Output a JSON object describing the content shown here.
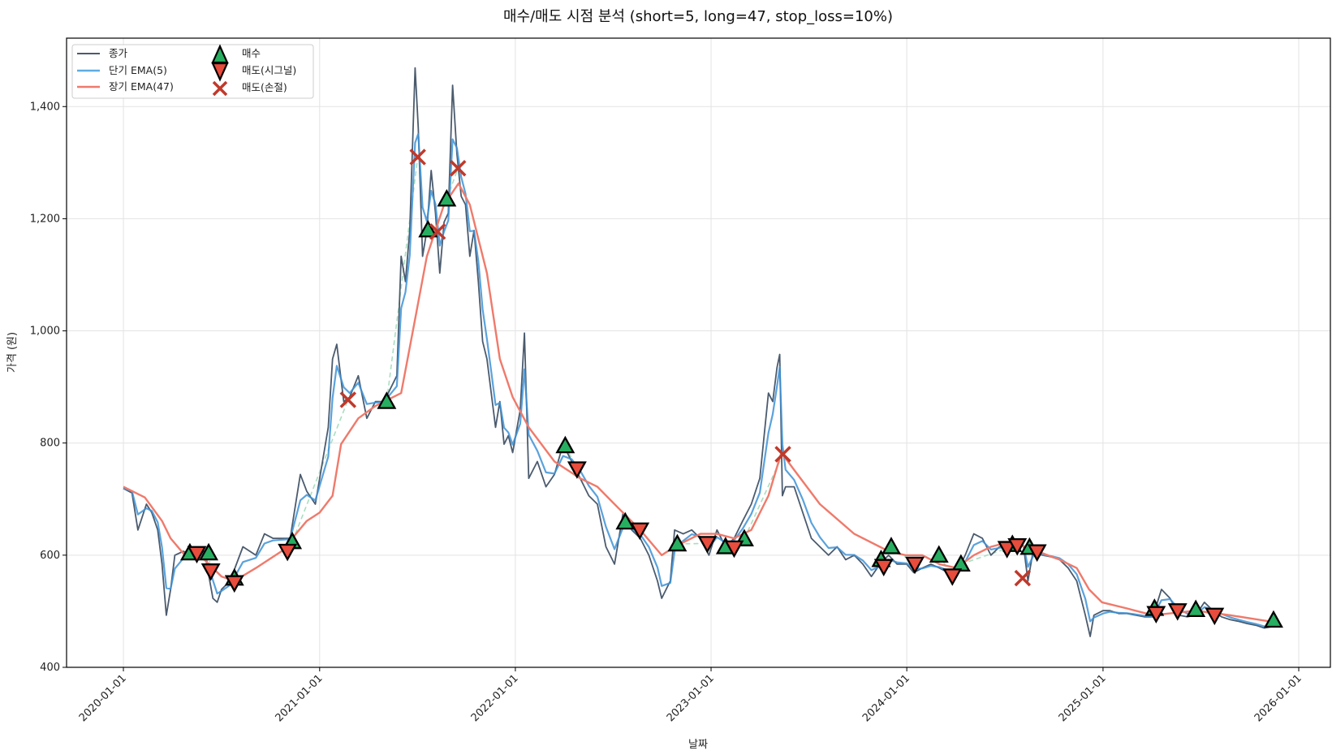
{
  "chart_data": {
    "type": "line",
    "title": "매수/매도 시점 분석 (short=5, long=47, stop_loss=10%)",
    "xlabel": "날짜",
    "ylabel": "가격 (원)",
    "xlim": [
      "2019-09-17",
      "2026-03-01"
    ],
    "ylim": [
      400,
      1522
    ],
    "x_ticks": [
      "2020-01-01",
      "2021-01-01",
      "2022-01-01",
      "2023-01-01",
      "2024-01-01",
      "2025-01-01",
      "2026-01-01"
    ],
    "y_ticks": [
      400,
      600,
      800,
      1000,
      1200,
      1400
    ],
    "y_tick_labels": [
      "400",
      "600",
      "800",
      "1,000",
      "1,200",
      "1,400"
    ],
    "grid": true,
    "legend_position": "top-left",
    "legend": {
      "close": "종가",
      "short_ema": "단기 EMA(5)",
      "long_ema": "장기 EMA(47)",
      "buy": "매수",
      "sell_signal": "매도(시그널)",
      "sell_stop": "매도(손절)"
    },
    "colors": {
      "close": "#4b5b6e",
      "short_ema": "#3d92d6",
      "long_ema": "#ef7a6b",
      "buy": "#27ae60",
      "sell_signal": "#e74c3c",
      "sell_stop": "#c0392b",
      "trade_line": "#a9dfbf"
    },
    "close": [
      [
        "2020-01-01",
        719
      ],
      [
        "2020-01-17",
        711
      ],
      [
        "2020-01-28",
        645
      ],
      [
        "2020-02-13",
        691
      ],
      [
        "2020-02-23",
        676
      ],
      [
        "2020-03-05",
        645
      ],
      [
        "2020-03-13",
        584
      ],
      [
        "2020-03-21",
        493
      ],
      [
        "2020-03-29",
        539
      ],
      [
        "2020-04-06",
        600
      ],
      [
        "2020-04-22",
        607
      ],
      [
        "2020-05-07",
        600
      ],
      [
        "2020-05-31",
        607
      ],
      [
        "2020-06-16",
        523
      ],
      [
        "2020-06-24",
        516
      ],
      [
        "2020-07-02",
        539
      ],
      [
        "2020-07-18",
        554
      ],
      [
        "2020-08-11",
        615
      ],
      [
        "2020-09-04",
        600
      ],
      [
        "2020-09-20",
        638
      ],
      [
        "2020-10-06",
        630
      ],
      [
        "2020-11-07",
        630
      ],
      [
        "2020-11-26",
        744
      ],
      [
        "2020-12-08",
        714
      ],
      [
        "2020-12-24",
        691
      ],
      [
        "2021-01-17",
        828
      ],
      [
        "2021-01-25",
        950
      ],
      [
        "2021-02-02",
        976
      ],
      [
        "2021-02-15",
        874
      ],
      [
        "2021-02-26",
        882
      ],
      [
        "2021-03-14",
        920
      ],
      [
        "2021-03-30",
        844
      ],
      [
        "2021-04-15",
        874
      ],
      [
        "2021-05-01",
        874
      ],
      [
        "2021-05-25",
        920
      ],
      [
        "2021-06-02",
        1133
      ],
      [
        "2021-06-10",
        1088
      ],
      [
        "2021-06-18",
        1179
      ],
      [
        "2021-06-28",
        1469
      ],
      [
        "2021-07-04",
        1362
      ],
      [
        "2021-07-12",
        1133
      ],
      [
        "2021-07-20",
        1179
      ],
      [
        "2021-07-28",
        1286
      ],
      [
        "2021-08-05",
        1210
      ],
      [
        "2021-08-13",
        1103
      ],
      [
        "2021-08-21",
        1194
      ],
      [
        "2021-08-29",
        1210
      ],
      [
        "2021-09-06",
        1438
      ],
      [
        "2021-09-14",
        1316
      ],
      [
        "2021-09-22",
        1240
      ],
      [
        "2021-09-30",
        1225
      ],
      [
        "2021-10-08",
        1133
      ],
      [
        "2021-10-16",
        1179
      ],
      [
        "2021-10-24",
        1088
      ],
      [
        "2021-11-01",
        981
      ],
      [
        "2021-11-09",
        950
      ],
      [
        "2021-11-17",
        889
      ],
      [
        "2021-11-25",
        828
      ],
      [
        "2021-12-03",
        874
      ],
      [
        "2021-12-11",
        798
      ],
      [
        "2021-12-19",
        813
      ],
      [
        "2021-12-27",
        783
      ],
      [
        "2022-01-10",
        859
      ],
      [
        "2022-01-18",
        996
      ],
      [
        "2022-01-26",
        737
      ],
      [
        "2022-02-11",
        767
      ],
      [
        "2022-02-27",
        722
      ],
      [
        "2022-03-15",
        744
      ],
      [
        "2022-03-31",
        798
      ],
      [
        "2022-04-16",
        767
      ],
      [
        "2022-05-02",
        737
      ],
      [
        "2022-05-18",
        706
      ],
      [
        "2022-06-03",
        691
      ],
      [
        "2022-06-19",
        615
      ],
      [
        "2022-07-05",
        584
      ],
      [
        "2022-07-21",
        676
      ],
      [
        "2022-08-06",
        645
      ],
      [
        "2022-08-22",
        630
      ],
      [
        "2022-09-07",
        600
      ],
      [
        "2022-09-23",
        554
      ],
      [
        "2022-10-01",
        523
      ],
      [
        "2022-10-17",
        554
      ],
      [
        "2022-10-25",
        645
      ],
      [
        "2022-11-10",
        638
      ],
      [
        "2022-11-26",
        645
      ],
      [
        "2022-12-12",
        630
      ],
      [
        "2022-12-28",
        600
      ],
      [
        "2023-01-12",
        645
      ],
      [
        "2023-01-28",
        615
      ],
      [
        "2023-02-13",
        630
      ],
      [
        "2023-03-01",
        661
      ],
      [
        "2023-03-17",
        691
      ],
      [
        "2023-04-02",
        737
      ],
      [
        "2023-04-18",
        889
      ],
      [
        "2023-04-26",
        874
      ],
      [
        "2023-05-04",
        935
      ],
      [
        "2023-05-09",
        958
      ],
      [
        "2023-05-14",
        706
      ],
      [
        "2023-05-20",
        722
      ],
      [
        "2023-06-05",
        722
      ],
      [
        "2023-06-21",
        676
      ],
      [
        "2023-07-07",
        630
      ],
      [
        "2023-07-23",
        615
      ],
      [
        "2023-08-08",
        600
      ],
      [
        "2023-08-24",
        615
      ],
      [
        "2023-09-09",
        592
      ],
      [
        "2023-09-25",
        600
      ],
      [
        "2023-10-11",
        584
      ],
      [
        "2023-10-27",
        562
      ],
      [
        "2023-11-12",
        584
      ],
      [
        "2023-11-28",
        600
      ],
      [
        "2023-12-14",
        584
      ],
      [
        "2024-01-01",
        584
      ],
      [
        "2024-01-14",
        569
      ],
      [
        "2024-01-30",
        577
      ],
      [
        "2024-02-15",
        584
      ],
      [
        "2024-03-02",
        577
      ],
      [
        "2024-03-18",
        569
      ],
      [
        "2024-04-03",
        569
      ],
      [
        "2024-04-19",
        600
      ],
      [
        "2024-05-05",
        638
      ],
      [
        "2024-05-21",
        630
      ],
      [
        "2024-06-06",
        600
      ],
      [
        "2024-06-22",
        615
      ],
      [
        "2024-07-08",
        615
      ],
      [
        "2024-07-24",
        623
      ],
      [
        "2024-08-06",
        615
      ],
      [
        "2024-08-14",
        554
      ],
      [
        "2024-08-25",
        615
      ],
      [
        "2024-09-10",
        600
      ],
      [
        "2024-09-26",
        597
      ],
      [
        "2024-10-12",
        592
      ],
      [
        "2024-10-28",
        577
      ],
      [
        "2024-11-13",
        554
      ],
      [
        "2024-11-29",
        493
      ],
      [
        "2024-12-08",
        455
      ],
      [
        "2024-12-15",
        493
      ],
      [
        "2025-01-01",
        501
      ],
      [
        "2025-01-14",
        501
      ],
      [
        "2025-01-30",
        496
      ],
      [
        "2025-02-15",
        496
      ],
      [
        "2025-03-03",
        493
      ],
      [
        "2025-03-19",
        490
      ],
      [
        "2025-04-04",
        490
      ],
      [
        "2025-04-20",
        539
      ],
      [
        "2025-05-06",
        523
      ],
      [
        "2025-05-22",
        493
      ],
      [
        "2025-06-07",
        490
      ],
      [
        "2025-06-23",
        493
      ],
      [
        "2025-07-09",
        516
      ],
      [
        "2025-07-25",
        501
      ],
      [
        "2025-08-10",
        490
      ],
      [
        "2025-08-26",
        485
      ],
      [
        "2025-09-11",
        482
      ],
      [
        "2025-09-27",
        478
      ],
      [
        "2025-10-13",
        475
      ],
      [
        "2025-10-29",
        470
      ],
      [
        "2025-11-14",
        473
      ]
    ],
    "long_ema": [
      [
        "2020-01-01",
        722
      ],
      [
        "2020-02-10",
        703
      ],
      [
        "2020-03-13",
        661
      ],
      [
        "2020-03-29",
        630
      ],
      [
        "2020-04-22",
        603
      ],
      [
        "2020-05-31",
        592
      ],
      [
        "2020-07-02",
        562
      ],
      [
        "2020-07-26",
        554
      ],
      [
        "2020-09-04",
        577
      ],
      [
        "2020-10-22",
        607
      ],
      [
        "2020-12-08",
        661
      ],
      [
        "2021-01-01",
        676
      ],
      [
        "2021-01-25",
        706
      ],
      [
        "2021-02-10",
        798
      ],
      [
        "2021-03-14",
        844
      ],
      [
        "2021-04-15",
        866
      ],
      [
        "2021-06-02",
        889
      ],
      [
        "2021-06-26",
        1011
      ],
      [
        "2021-07-20",
        1133
      ],
      [
        "2021-08-21",
        1225
      ],
      [
        "2021-09-17",
        1263
      ],
      [
        "2021-10-08",
        1225
      ],
      [
        "2021-11-09",
        1103
      ],
      [
        "2021-12-03",
        950
      ],
      [
        "2021-12-27",
        882
      ],
      [
        "2022-01-26",
        828
      ],
      [
        "2022-03-15",
        767
      ],
      [
        "2022-05-02",
        737
      ],
      [
        "2022-06-03",
        722
      ],
      [
        "2022-07-05",
        691
      ],
      [
        "2022-08-22",
        645
      ],
      [
        "2022-10-01",
        600
      ],
      [
        "2022-10-25",
        615
      ],
      [
        "2022-12-12",
        638
      ],
      [
        "2023-01-12",
        638
      ],
      [
        "2023-02-13",
        630
      ],
      [
        "2023-03-17",
        645
      ],
      [
        "2023-04-18",
        706
      ],
      [
        "2023-05-12",
        783
      ],
      [
        "2023-06-05",
        752
      ],
      [
        "2023-07-23",
        691
      ],
      [
        "2023-09-25",
        638
      ],
      [
        "2023-11-28",
        607
      ],
      [
        "2023-12-30",
        600
      ],
      [
        "2024-01-30",
        600
      ],
      [
        "2024-03-02",
        584
      ],
      [
        "2024-04-03",
        577
      ],
      [
        "2024-05-05",
        600
      ],
      [
        "2024-06-06",
        615
      ],
      [
        "2024-07-08",
        623
      ],
      [
        "2024-08-09",
        615
      ],
      [
        "2024-10-12",
        592
      ],
      [
        "2024-11-13",
        577
      ],
      [
        "2024-12-06",
        539
      ],
      [
        "2024-12-30",
        516
      ],
      [
        "2025-02-15",
        505
      ],
      [
        "2025-04-04",
        493
      ],
      [
        "2025-06-23",
        501
      ],
      [
        "2025-08-26",
        493
      ],
      [
        "2025-11-14",
        481
      ]
    ],
    "buy": [
      [
        "2020-05-04",
        604
      ],
      [
        "2020-06-08",
        604
      ],
      [
        "2020-07-26",
        559
      ],
      [
        "2020-11-11",
        624
      ],
      [
        "2021-05-06",
        874
      ],
      [
        "2021-07-22",
        1180
      ],
      [
        "2021-08-26",
        1235
      ],
      [
        "2022-04-04",
        795
      ],
      [
        "2022-07-25",
        659
      ],
      [
        "2022-10-30",
        620
      ],
      [
        "2023-01-28",
        615
      ],
      [
        "2023-03-04",
        629
      ],
      [
        "2023-11-14",
        592
      ],
      [
        "2023-12-03",
        615
      ],
      [
        "2024-03-01",
        600
      ],
      [
        "2024-04-11",
        584
      ],
      [
        "2024-07-16",
        619
      ],
      [
        "2024-08-17",
        614
      ],
      [
        "2025-04-07",
        505
      ],
      [
        "2025-06-23",
        503
      ],
      [
        "2025-11-15",
        484
      ]
    ],
    "sell_signal": [
      [
        "2020-05-17",
        603
      ],
      [
        "2020-06-12",
        572
      ],
      [
        "2020-07-26",
        551
      ],
      [
        "2020-11-02",
        607
      ],
      [
        "2022-04-26",
        754
      ],
      [
        "2022-08-21",
        645
      ],
      [
        "2022-12-25",
        621
      ],
      [
        "2023-02-13",
        613
      ],
      [
        "2023-11-19",
        580
      ],
      [
        "2024-01-16",
        584
      ],
      [
        "2024-03-26",
        563
      ],
      [
        "2024-07-06",
        612
      ],
      [
        "2024-07-25",
        617
      ],
      [
        "2024-08-31",
        606
      ],
      [
        "2025-04-10",
        496
      ],
      [
        "2025-05-20",
        501
      ],
      [
        "2025-07-28",
        493
      ]
    ],
    "sell_stop": [
      [
        "2021-02-23",
        877
      ],
      [
        "2021-07-03",
        1310
      ],
      [
        "2021-08-09",
        1177
      ],
      [
        "2021-09-16",
        1290
      ],
      [
        "2023-05-15",
        780
      ],
      [
        "2024-08-04",
        559
      ]
    ]
  }
}
